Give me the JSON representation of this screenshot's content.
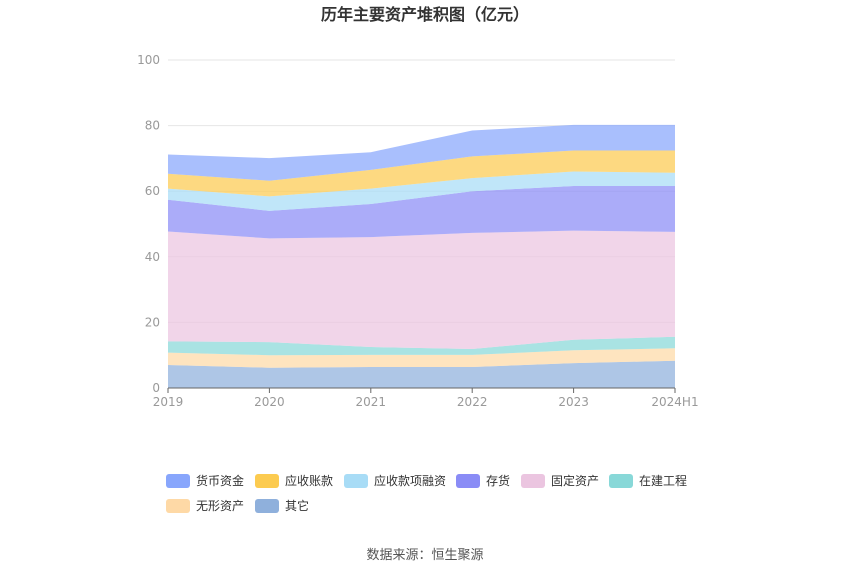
{
  "chart_data": {
    "type": "area",
    "stacked": true,
    "title": "历年主要资产堆积图（亿元）",
    "x": [
      "2019",
      "2020",
      "2021",
      "2022",
      "2023",
      "2024H1"
    ],
    "ylim": [
      0,
      100
    ],
    "yticks": [
      0,
      20,
      40,
      60,
      80,
      100
    ],
    "grid": true,
    "legend_position": "bottom",
    "series": [
      {
        "name": "其它",
        "color": "#8fb0dc",
        "values": [
          7.0,
          6.2,
          6.4,
          6.4,
          7.6,
          8.3
        ]
      },
      {
        "name": "无形资产",
        "color": "#fed9a6",
        "values": [
          3.8,
          3.8,
          3.7,
          3.7,
          3.9,
          3.8
        ]
      },
      {
        "name": "在建工程",
        "color": "#88d8d8",
        "values": [
          3.4,
          4.0,
          2.4,
          1.8,
          3.2,
          3.5
        ]
      },
      {
        "name": "固定资产",
        "color": "#ebc5e0",
        "values": [
          33.5,
          31.6,
          33.5,
          35.4,
          33.3,
          32.0
        ]
      },
      {
        "name": "存货",
        "color": "#8a8cf6",
        "values": [
          9.7,
          8.4,
          10.1,
          12.7,
          13.6,
          14.0
        ]
      },
      {
        "name": "应收款项融资",
        "color": "#a8dcf6",
        "values": [
          3.4,
          4.4,
          4.7,
          4.0,
          4.4,
          4.0
        ]
      },
      {
        "name": "应收账款",
        "color": "#fccb50",
        "values": [
          4.5,
          4.8,
          5.7,
          6.6,
          6.4,
          6.8
        ]
      },
      {
        "name": "货币资金",
        "color": "#88a6fc",
        "values": [
          5.9,
          6.9,
          5.4,
          7.9,
          7.8,
          7.8
        ]
      }
    ],
    "legend_order": [
      "货币资金",
      "应收账款",
      "应收款项融资",
      "存货",
      "固定资产",
      "在建工程",
      "无形资产",
      "其它"
    ]
  },
  "source": "数据来源：恒生聚源"
}
